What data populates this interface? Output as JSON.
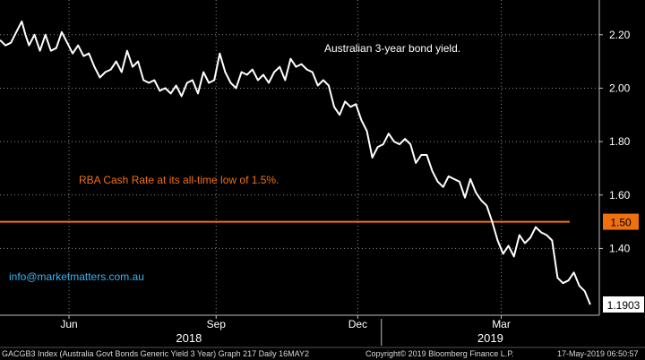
{
  "chart_data": {
    "type": "line",
    "ylim": [
      1.15,
      2.33
    ],
    "xlim": [
      0,
      330
    ],
    "y_ticks": [
      "2.20",
      "2.00",
      "1.80",
      "1.60",
      "1.40"
    ],
    "y_tick_values": [
      2.2,
      2.0,
      1.8,
      1.6,
      1.4
    ],
    "x_month_ticks": [
      {
        "label": "Jun",
        "x": 38
      },
      {
        "label": "Sep",
        "x": 119
      },
      {
        "label": "Dec",
        "x": 197
      },
      {
        "label": "Mar",
        "x": 276
      }
    ],
    "x_year_labels": [
      {
        "label": "2018",
        "x": 104
      },
      {
        "label": "2019",
        "x": 270
      }
    ],
    "x_year_divider": 210,
    "series": [
      {
        "name": "",
        "color": "#ffffff",
        "x": [
          0,
          3,
          6,
          9,
          12,
          14,
          16,
          19,
          22,
          25,
          28,
          31,
          34,
          37,
          40,
          43,
          46,
          49,
          52,
          55,
          58,
          61,
          64,
          67,
          70,
          73,
          76,
          79,
          82,
          85,
          88,
          91,
          94,
          97,
          100,
          103,
          106,
          109,
          112,
          115,
          118,
          121,
          124,
          127,
          130,
          133,
          136,
          139,
          142,
          145,
          148,
          151,
          154,
          157,
          160,
          163,
          166,
          169,
          172,
          175,
          178,
          181,
          184,
          187,
          190,
          193,
          196,
          199,
          202,
          205,
          208,
          211,
          214,
          217,
          220,
          223,
          226,
          229,
          232,
          235,
          238,
          241,
          244,
          247,
          250,
          253,
          256,
          259,
          262,
          265,
          268,
          271,
          274,
          277,
          280,
          283,
          286,
          289,
          292,
          295,
          298,
          301,
          304,
          307,
          310,
          313,
          316,
          319,
          322,
          325
        ],
        "values": [
          2.18,
          2.16,
          2.17,
          2.21,
          2.25,
          2.2,
          2.16,
          2.2,
          2.14,
          2.2,
          2.14,
          2.15,
          2.21,
          2.17,
          2.13,
          2.16,
          2.12,
          2.13,
          2.08,
          2.04,
          2.06,
          2.07,
          2.1,
          2.06,
          2.14,
          2.08,
          2.1,
          2.03,
          2.02,
          2.03,
          1.99,
          2.0,
          1.98,
          2.01,
          1.97,
          2.02,
          2.03,
          1.98,
          2.06,
          2.02,
          2.03,
          2.13,
          2.06,
          2.02,
          2.0,
          2.06,
          2.05,
          2.07,
          2.03,
          2.05,
          2.02,
          2.06,
          2.08,
          2.03,
          2.11,
          2.08,
          2.09,
          2.07,
          2.06,
          2.01,
          2.03,
          2.01,
          1.93,
          1.9,
          1.95,
          1.93,
          1.94,
          1.88,
          1.84,
          1.74,
          1.78,
          1.79,
          1.83,
          1.8,
          1.79,
          1.81,
          1.79,
          1.72,
          1.75,
          1.75,
          1.69,
          1.65,
          1.63,
          1.67,
          1.66,
          1.65,
          1.59,
          1.66,
          1.61,
          1.58,
          1.56,
          1.5,
          1.43,
          1.38,
          1.41,
          1.37,
          1.45,
          1.42,
          1.44,
          1.48,
          1.46,
          1.45,
          1.43,
          1.29,
          1.27,
          1.28,
          1.31,
          1.26,
          1.24,
          1.19
        ]
      }
    ],
    "reference_line": {
      "value": 1.5,
      "color": "#f07010"
    },
    "badges": [
      {
        "label": "1.50",
        "value": 1.5,
        "bg": "#f07010",
        "fg": "#000000"
      },
      {
        "label": "1.1903",
        "value": 1.1903,
        "bg": "#ffffff",
        "fg": "#000000"
      }
    ],
    "annotations": [
      {
        "text": "Australian 3-year bond yield.",
        "color": "#ffffff"
      },
      {
        "text": "RBA Cash Rate at its all-time low of 1.5%.",
        "color": "#f07010"
      },
      {
        "text": "info@marketmatters.com.au",
        "color": "#3ab4f2"
      }
    ],
    "grid": true,
    "background": "#000000",
    "grid_color": "#8a8a8a"
  },
  "footer": {
    "index_text": "GACGB3 Index (Australia Govt Bonds Generic Yield 3 Year) Graph 217  Daily 16MAY2",
    "copyright": "Copyright© 2019 Bloomberg Finance L.P.",
    "timestamp": "17-May-2019 06:50:57"
  }
}
